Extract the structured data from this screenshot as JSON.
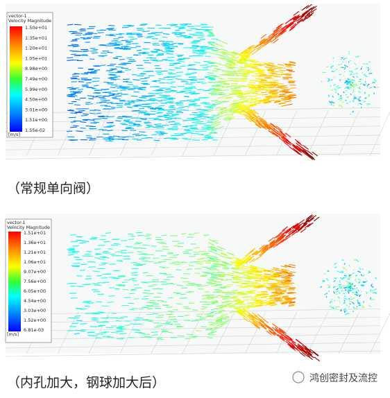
{
  "figures": [
    {
      "legend": {
        "title": "vector-1",
        "quantity": "Velocity Magnitude",
        "labels": [
          "1.50e+01",
          "1.35e+01",
          "1.20e+01",
          "1.05e+01",
          "8.98e+00",
          "7.49e+00",
          "5.99e+00",
          "4.50e+00",
          "3.01e+00",
          "1.51e+00",
          "1.55e-02"
        ],
        "unit": "[m/s]"
      },
      "caption": "（常规单向阀）"
    },
    {
      "legend": {
        "title": "vector-1",
        "quantity": "Velocity Magnitude",
        "labels": [
          "1.51e+01",
          "1.36e+01",
          "1.21e+01",
          "1.06e+01",
          "9.07e+00",
          "7.56e+00",
          "6.05e+00",
          "4.54e+00",
          "3.03e+00",
          "1.52e+00",
          "6.81e-03"
        ],
        "unit": "[m/s]"
      },
      "caption": "（内孔加大，钢球加大后）"
    }
  ],
  "watermark": "鸿创密封及流控"
}
